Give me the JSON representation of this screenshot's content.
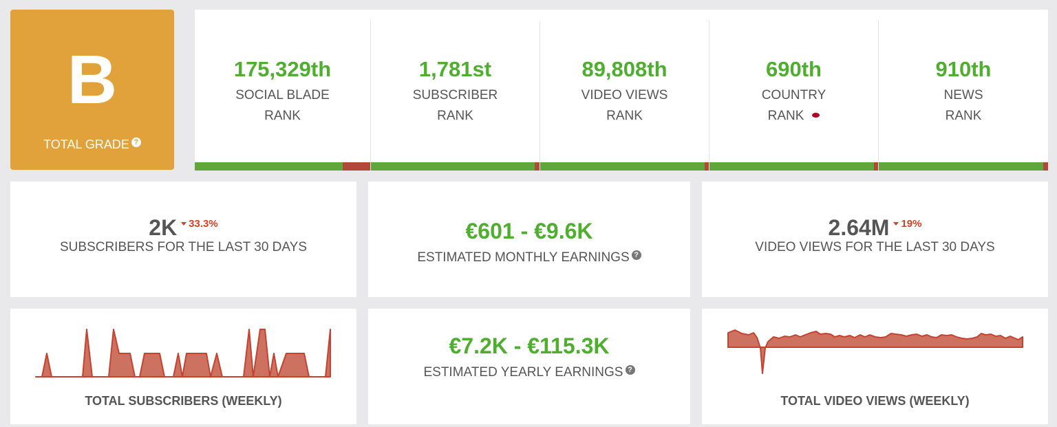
{
  "grade": {
    "letter": "B",
    "label": "TOTAL GRADE",
    "help_icon": "question-circle-icon",
    "color": "#e1a23b"
  },
  "ranks": [
    {
      "value": "175,329th",
      "line1": "SOCIAL BLADE",
      "line2": "RANK",
      "bar_green_fraction": 0.86
    },
    {
      "value": "1,781st",
      "line1": "SUBSCRIBER",
      "line2": "RANK",
      "bar_green_fraction": 0.97
    },
    {
      "value": "89,808th",
      "line1": "VIDEO VIEWS",
      "line2": "RANK",
      "bar_green_fraction": 0.97
    },
    {
      "value": "690th",
      "line1": "COUNTRY",
      "line2": "RANK",
      "bar_green_fraction": 0.97,
      "flag_icon": "flag-icon"
    },
    {
      "value": "910th",
      "line1": "NEWS",
      "line2": "RANK",
      "bar_green_fraction": 0.97
    }
  ],
  "subs30": {
    "value": "2K",
    "delta": "33.3%",
    "label": "SUBSCRIBERS FOR THE LAST 30 DAYS"
  },
  "monthly": {
    "value": "€601  -  €9.6K",
    "label": "ESTIMATED MONTHLY EARNINGS"
  },
  "views30": {
    "value": "2.64M",
    "delta": "19%",
    "label": "VIDEO VIEWS FOR THE LAST 30 DAYS"
  },
  "yearly": {
    "value": "€7.2K  -  €115.3K",
    "label": "ESTIMATED YEARLY EARNINGS"
  },
  "subs_chart": {
    "title": "TOTAL SUBSCRIBERS (WEEKLY)"
  },
  "views_chart": {
    "title": "TOTAL VIDEO VIEWS (WEEKLY)"
  },
  "colors": {
    "green": "#4eae2e",
    "red": "#b2483a",
    "chart_fill": "#cd7160",
    "chart_line": "#c5422f"
  }
}
